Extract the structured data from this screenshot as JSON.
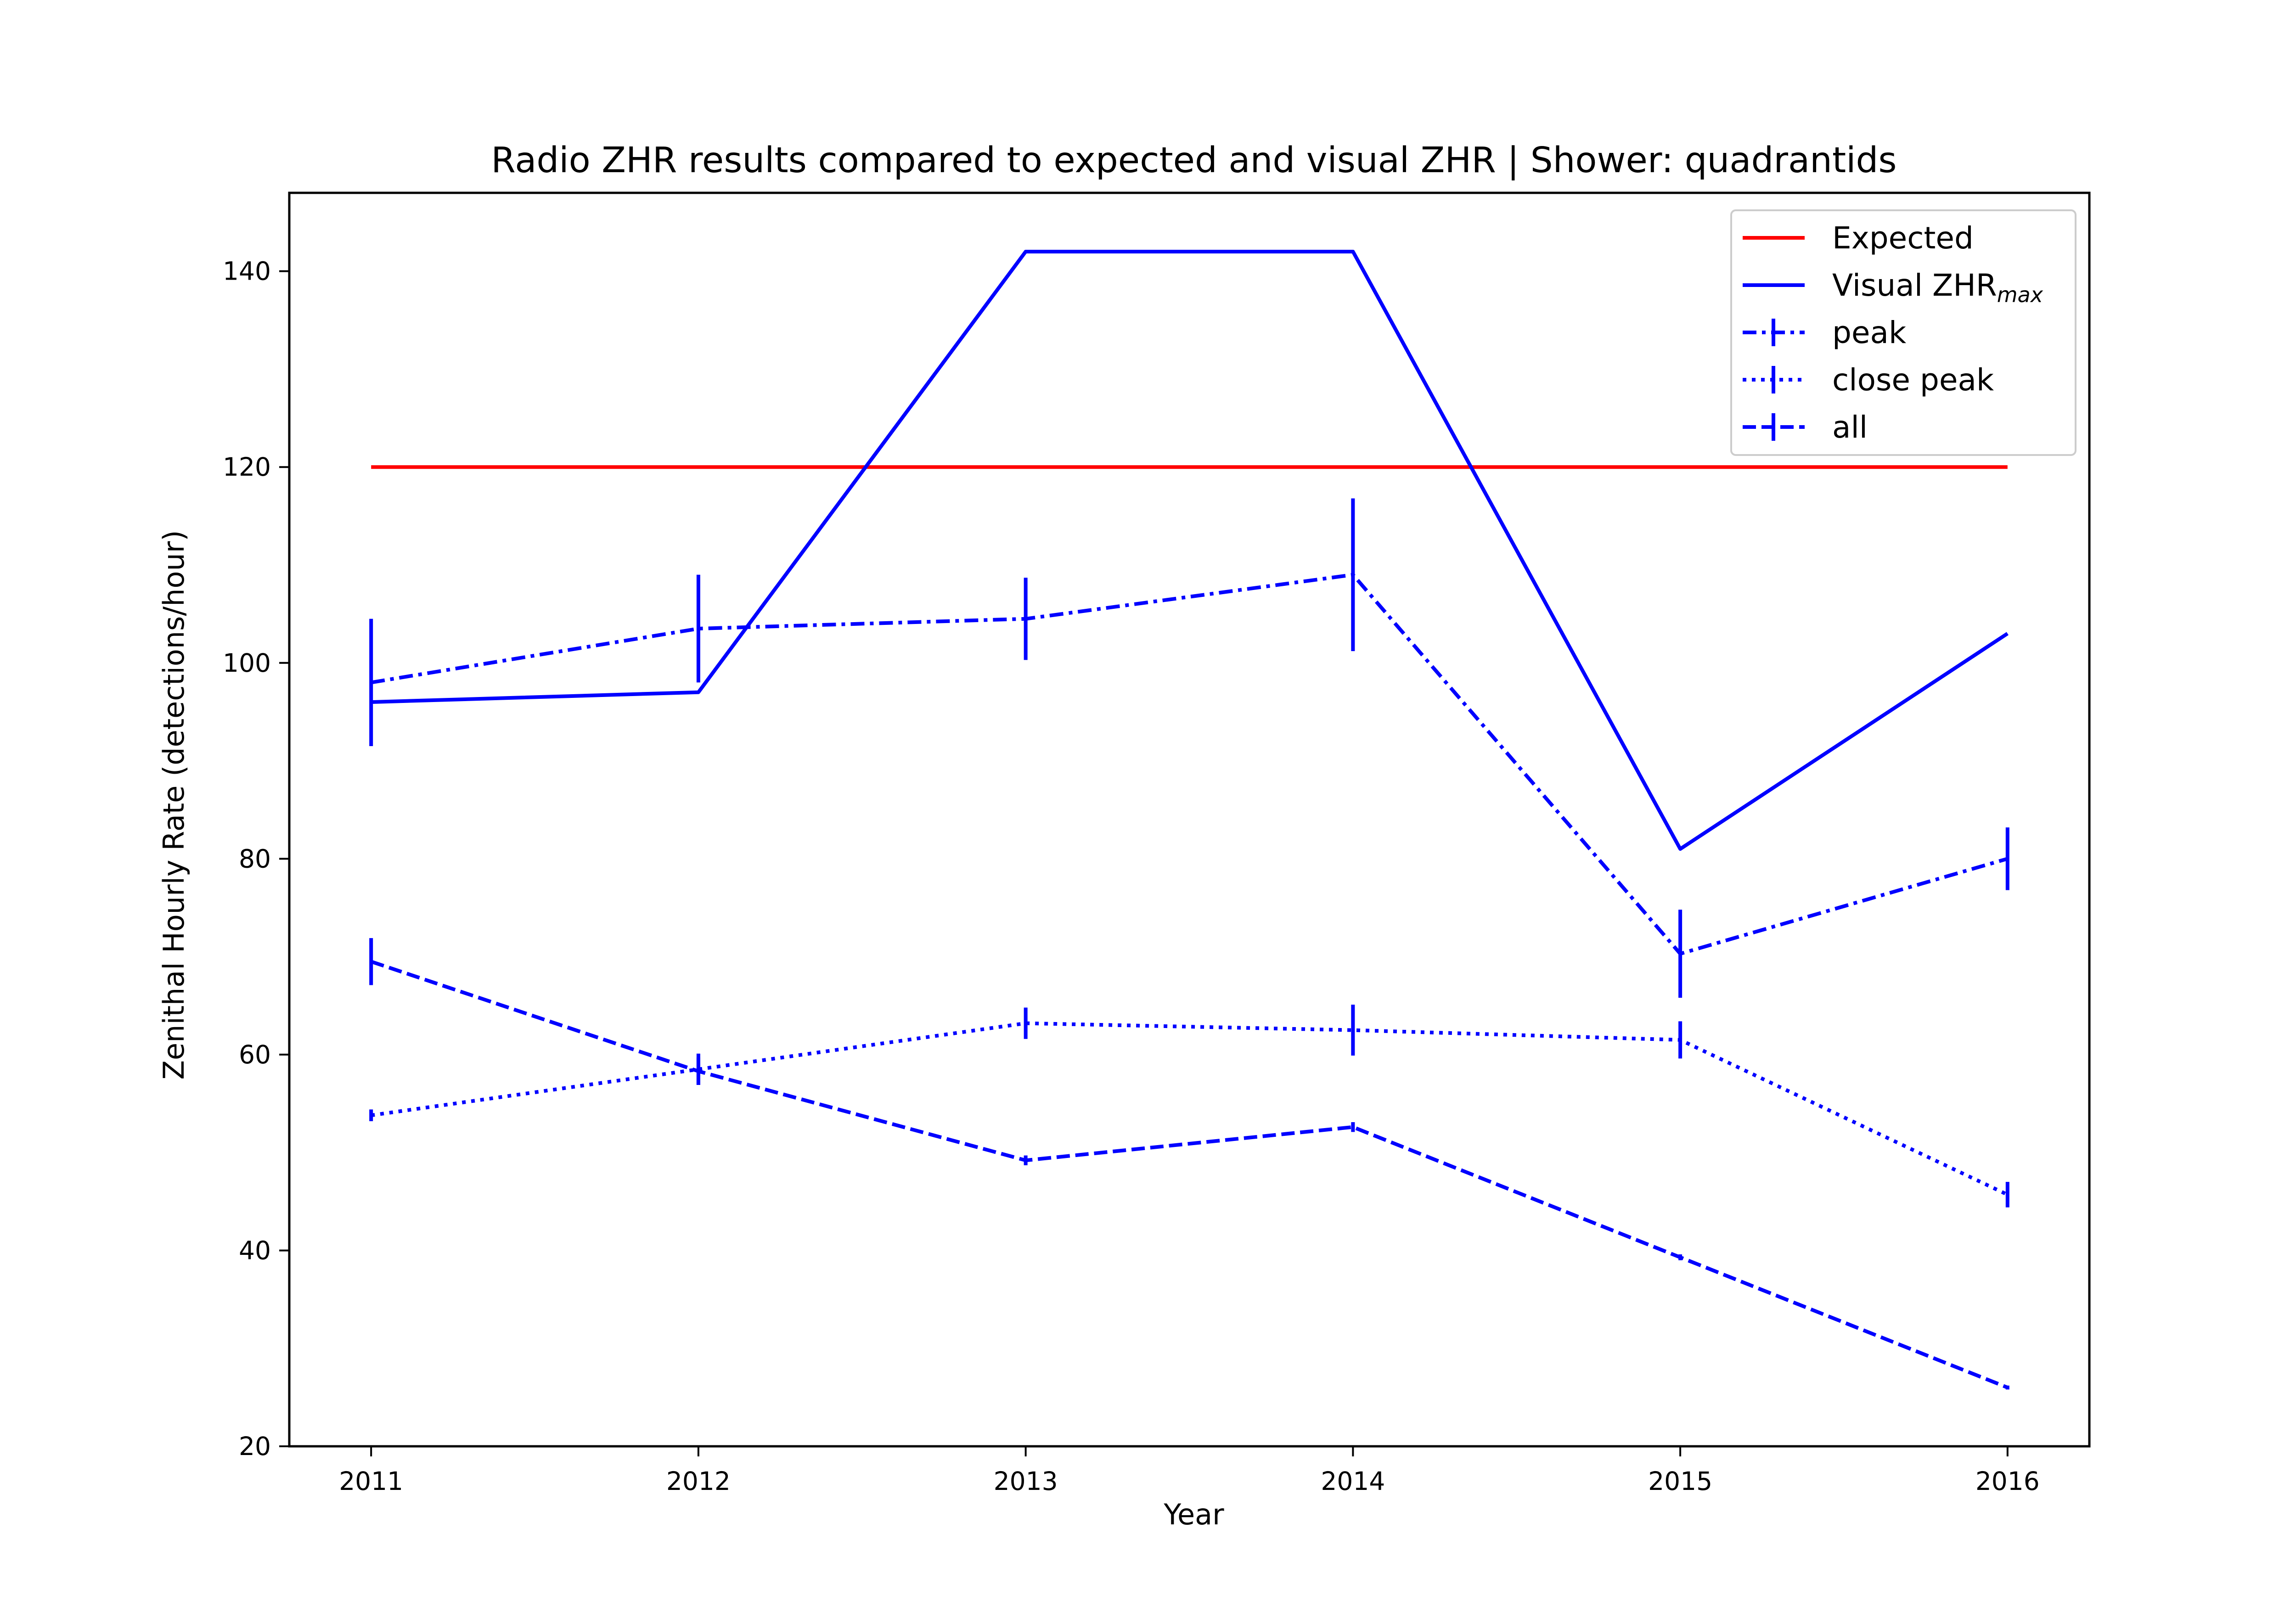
{
  "chart_data": {
    "type": "line",
    "title": "Radio ZHR results compared to expected and visual ZHR | Shower: quadrantids",
    "xlabel": "Year",
    "ylabel": "Zenithal Hourly Rate (detections/hour)",
    "x": [
      2011,
      2012,
      2013,
      2014,
      2015,
      2016
    ],
    "x_tick_labels": [
      "2011",
      "2012",
      "2013",
      "2014",
      "2015",
      "2016"
    ],
    "xlim": [
      2010.75,
      2016.25
    ],
    "ylim": [
      20,
      148
    ],
    "y_ticks": [
      20,
      40,
      60,
      80,
      100,
      120,
      140
    ],
    "y_tick_labels": [
      "20",
      "40",
      "60",
      "80",
      "100",
      "120",
      "140"
    ],
    "grid": false,
    "legend_position": "top-right",
    "series": [
      {
        "name": "Expected",
        "color": "#ff0000",
        "line_style": "solid",
        "values": [
          120,
          120,
          120,
          120,
          120,
          120
        ]
      },
      {
        "name": "Visual ZHR",
        "name_subscript": "max",
        "color": "#0000ff",
        "line_style": "solid",
        "values": [
          96,
          97,
          142,
          142,
          81,
          103
        ]
      },
      {
        "name": "peak",
        "color": "#0000ff",
        "line_style": "dashdot",
        "values": [
          98,
          103.5,
          104.5,
          109,
          70.3,
          80
        ],
        "errors": [
          6.5,
          5.5,
          4.2,
          7.8,
          4.5,
          3.2
        ]
      },
      {
        "name": "close peak",
        "color": "#0000ff",
        "line_style": "dotted",
        "values": [
          53.8,
          58.5,
          63.2,
          62.5,
          61.5,
          45.7
        ],
        "errors": [
          0.6,
          1.6,
          1.6,
          2.6,
          1.9,
          1.3
        ]
      },
      {
        "name": "all",
        "color": "#0000ff",
        "line_style": "dashed",
        "values": [
          69.5,
          58.3,
          49.2,
          52.6,
          39.3,
          26
        ],
        "errors": [
          2.4,
          1.4,
          0.5,
          0.5,
          0.3,
          0.2
        ]
      }
    ]
  }
}
